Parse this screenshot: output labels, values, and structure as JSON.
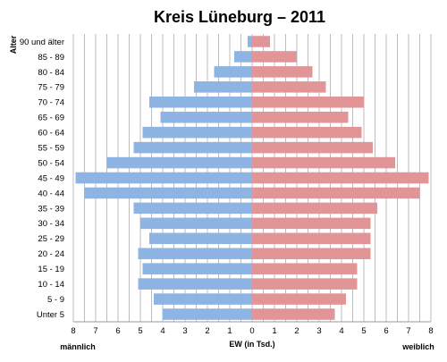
{
  "chart_data": {
    "type": "bar",
    "orientation": "horizontal",
    "title": "Kreis Lüneburg – 2011",
    "ylabel": "Alter",
    "xlabel": "EW (in Tsd.)",
    "left_label": "männlich",
    "right_label": "weiblich",
    "xlim": [
      0,
      8
    ],
    "xticks": [
      8,
      7,
      6,
      5,
      4,
      3,
      2,
      1,
      0,
      1,
      2,
      3,
      4,
      5,
      6,
      7,
      8
    ],
    "grid": true,
    "categories": [
      "90 und älter",
      "85 - 89",
      "80 - 84",
      "75 - 79",
      "70 - 74",
      "65 - 69",
      "60 - 64",
      "55 - 59",
      "50 - 54",
      "45 - 49",
      "40 - 44",
      "35 - 39",
      "30 - 34",
      "25 - 29",
      "20 - 24",
      "15 - 19",
      "10 - 14",
      "5 - 9",
      "Unter 5"
    ],
    "series": [
      {
        "name": "männlich",
        "color": "#8db4e2",
        "values": [
          0.2,
          0.8,
          1.7,
          2.6,
          4.6,
          4.1,
          4.9,
          5.3,
          6.5,
          7.9,
          7.5,
          5.3,
          5.0,
          4.6,
          5.1,
          4.9,
          5.1,
          4.4,
          4.0
        ]
      },
      {
        "name": "weiblich",
        "color": "#e29596",
        "values": [
          0.8,
          2.0,
          2.7,
          3.3,
          5.0,
          4.3,
          4.9,
          5.4,
          6.4,
          7.9,
          7.5,
          5.6,
          5.3,
          5.3,
          5.3,
          4.7,
          4.7,
          4.2,
          3.7
        ]
      }
    ]
  }
}
